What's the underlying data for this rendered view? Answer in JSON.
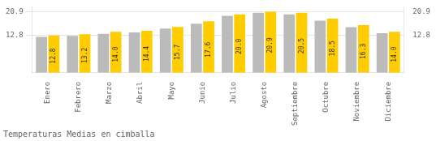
{
  "chart_data": {
    "type": "bar",
    "title": "Temperaturas Medias en cimballa",
    "categories": [
      "Enero",
      "Febrero",
      "Marzo",
      "Abril",
      "Mayo",
      "Junio",
      "Julio",
      "Agosto",
      "Septiembre",
      "Octubre",
      "Noviembre",
      "Diciembre"
    ],
    "series": [
      {
        "color": "#BBBBBB",
        "values": [
          12.3,
          12.6,
          13.3,
          13.8,
          15.1,
          16.8,
          19.5,
          20.5,
          20.0,
          17.8,
          15.6,
          13.5
        ]
      },
      {
        "color": "#FFCC00",
        "values": [
          12.8,
          13.2,
          14.0,
          14.4,
          15.7,
          17.6,
          20.0,
          20.9,
          20.5,
          18.5,
          16.3,
          14.0
        ],
        "value_labels": [
          "12.8",
          "13.2",
          "14.0",
          "14.4",
          "15.7",
          "17.6",
          "20.0",
          "20.9",
          "20.5",
          "18.5",
          "16.3",
          "14.0"
        ],
        "data_labels": true
      }
    ],
    "ylim": [
      0,
      22.572
    ],
    "yticks": [
      12.8,
      20.9
    ],
    "y2lim": [
      0,
      22.572
    ],
    "y2ticks": [
      12.8,
      20.9
    ],
    "grid": true
  }
}
